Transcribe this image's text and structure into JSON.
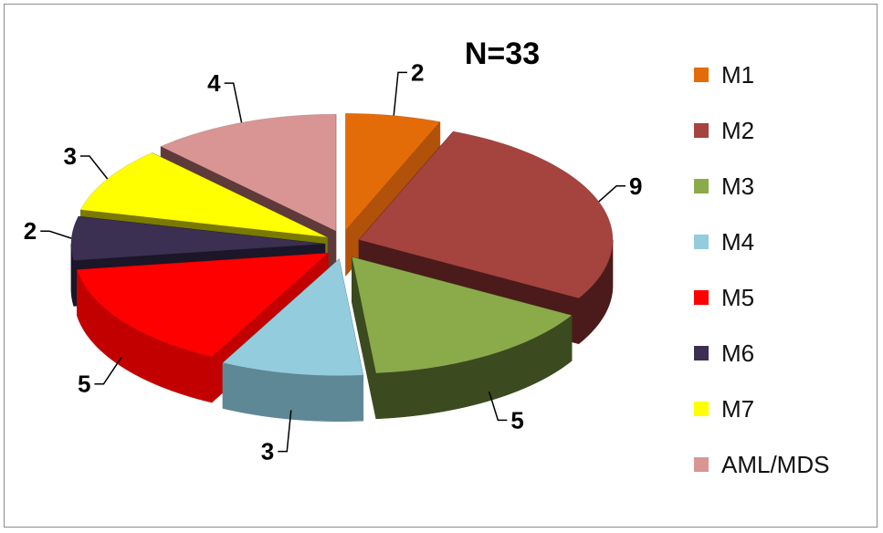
{
  "chart_data": {
    "type": "pie",
    "title": "N=33",
    "categories": [
      "M1",
      "M2",
      "M3",
      "M4",
      "M5",
      "M6",
      "M7",
      "AML/MDS"
    ],
    "values": [
      2,
      9,
      5,
      3,
      5,
      2,
      3,
      4
    ],
    "colors": [
      "#E36C09",
      "#A5433F",
      "#8BAA4A",
      "#93CDDD",
      "#FF0000",
      "#3B2F52",
      "#FFFF00",
      "#D99594"
    ],
    "side_colors": [
      "#B2510A",
      "#4B1A1A",
      "#3C4A1F",
      "#5F8896",
      "#C20000",
      "#1B1628",
      "#7A7A00",
      "#5E3A3A"
    ],
    "legend_position": "right",
    "three_d": true,
    "exploded": true
  }
}
